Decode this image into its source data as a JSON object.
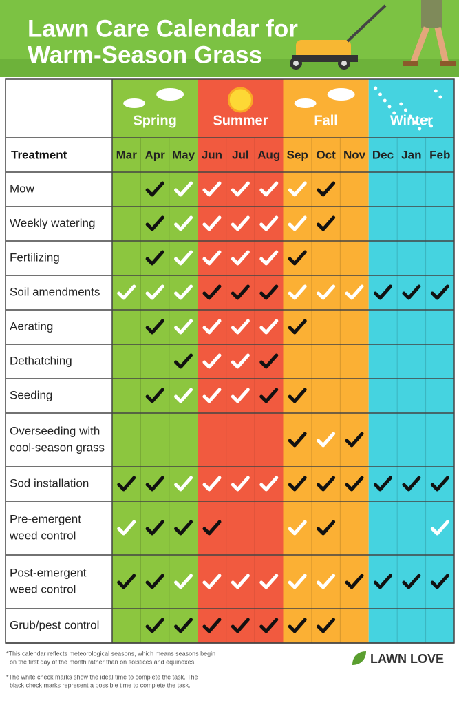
{
  "header": {
    "title": [
      "Lawn Care Calendar for",
      "Warm-Season Grass"
    ]
  },
  "table": {
    "corner": "Treatment",
    "seasons": [
      {
        "name": "Spring",
        "color": "#8cc63f",
        "months": [
          "Mar",
          "Apr",
          "May"
        ]
      },
      {
        "name": "Summer",
        "color": "#f15a3f",
        "months": [
          "Jun",
          "Jul",
          "Aug"
        ]
      },
      {
        "name": "Fall",
        "color": "#fbb034",
        "months": [
          "Sep",
          "Oct",
          "Nov"
        ]
      },
      {
        "name": "Winter",
        "color": "#45d3e0",
        "months": [
          "Dec",
          "Jan",
          "Feb"
        ]
      }
    ],
    "rows": [
      {
        "treatment": [
          "Mow"
        ],
        "checks": [
          null,
          "black",
          "white",
          "white",
          "white",
          "white",
          "white",
          "black",
          null,
          null,
          null,
          null
        ]
      },
      {
        "treatment": [
          "Weekly watering"
        ],
        "checks": [
          null,
          "black",
          "white",
          "white",
          "white",
          "white",
          "white",
          "black",
          null,
          null,
          null,
          null
        ]
      },
      {
        "treatment": [
          "Fertilizing"
        ],
        "checks": [
          null,
          "black",
          "white",
          "white",
          "white",
          "white",
          "black",
          null,
          null,
          null,
          null,
          null
        ]
      },
      {
        "treatment": [
          "Soil amendments"
        ],
        "checks": [
          "white",
          "white",
          "white",
          "black",
          "black",
          "black",
          "white",
          "white",
          "white",
          "black",
          "black",
          "black"
        ]
      },
      {
        "treatment": [
          "Aerating"
        ],
        "checks": [
          null,
          "black",
          "white",
          "white",
          "white",
          "white",
          "black",
          null,
          null,
          null,
          null,
          null
        ]
      },
      {
        "treatment": [
          "Dethatching"
        ],
        "checks": [
          null,
          null,
          "black",
          "white",
          "white",
          "black",
          null,
          null,
          null,
          null,
          null,
          null
        ]
      },
      {
        "treatment": [
          "Seeding"
        ],
        "checks": [
          null,
          "black",
          "white",
          "white",
          "white",
          "black",
          "black",
          null,
          null,
          null,
          null,
          null
        ]
      },
      {
        "treatment": [
          "Overseeding with",
          "cool-season grass"
        ],
        "checks": [
          null,
          null,
          null,
          null,
          null,
          null,
          "black",
          "white",
          "black",
          null,
          null,
          null
        ]
      },
      {
        "treatment": [
          "Sod installation"
        ],
        "checks": [
          "black",
          "black",
          "white",
          "white",
          "white",
          "white",
          "black",
          "black",
          "black",
          "black",
          "black",
          "black"
        ]
      },
      {
        "treatment": [
          "Pre-emergent",
          "weed control"
        ],
        "checks": [
          "white",
          "black",
          "black",
          "black",
          null,
          null,
          "white",
          "black",
          null,
          null,
          null,
          "white"
        ]
      },
      {
        "treatment": [
          "Post-emergent",
          "weed control"
        ],
        "checks": [
          "black",
          "black",
          "white",
          "white",
          "white",
          "white",
          "white",
          "white",
          "black",
          "black",
          "black",
          "black"
        ]
      },
      {
        "treatment": [
          "Grub/pest control"
        ],
        "checks": [
          null,
          "black",
          "black",
          "black",
          "black",
          "black",
          "black",
          "black",
          null,
          null,
          null,
          null
        ]
      }
    ]
  },
  "footnotes": [
    [
      "*This calendar reflects meteorological seasons, which means seasons begin",
      "on the first day of the month rather than on solstices and equinoxes."
    ],
    [
      "*The white check marks show the ideal time to complete the task. The",
      "black check marks represent a possible time to complete the task."
    ]
  ],
  "logo": "LAWN LOVE"
}
